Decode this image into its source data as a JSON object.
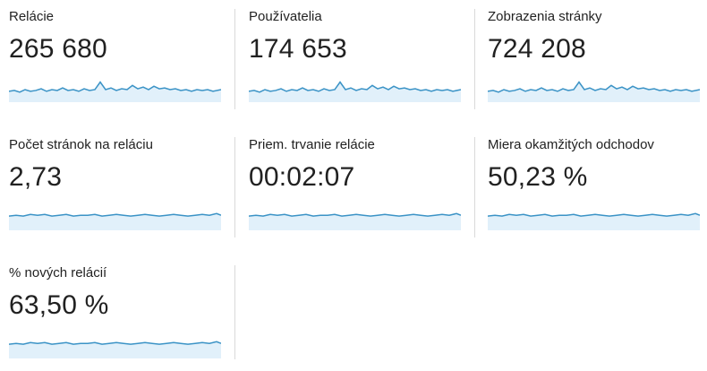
{
  "metrics": [
    {
      "label": "Relácie",
      "value": "265 680"
    },
    {
      "label": "Používatelia",
      "value": "174 653"
    },
    {
      "label": "Zobrazenia stránky",
      "value": "724 208"
    },
    {
      "label": "Počet stránok na reláciu",
      "value": "2,73"
    },
    {
      "label": "Priem. trvanie relácie",
      "value": "00:02:07"
    },
    {
      "label": "Miera okamžitých odchodov",
      "value": "50,23 %"
    },
    {
      "label": "% nových relácií",
      "value": "63,50 %"
    }
  ]
}
